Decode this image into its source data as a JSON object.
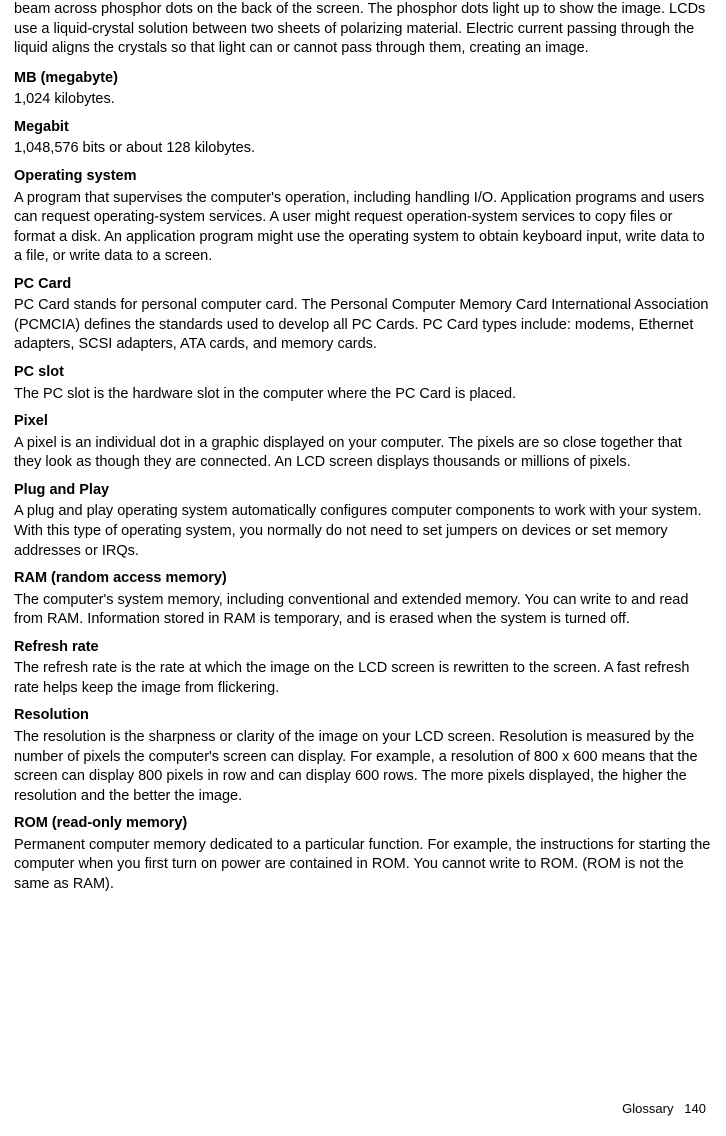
{
  "intro": "beam across phosphor dots on the back of the screen. The phosphor dots light up to show the image. LCDs use a liquid-crystal solution between two sheets of polarizing material. Electric current passing through the liquid aligns the crystals so that light can or cannot pass through them, creating an image.",
  "entries": [
    {
      "term": "MB (megabyte)",
      "def": "1,024 kilobytes."
    },
    {
      "term": "Megabit",
      "def": "1,048,576 bits or about 128 kilobytes."
    },
    {
      "term": "Operating system",
      "def": "A program that supervises the computer's operation, including handling I/O. Application programs and users can request operating-system services. A user might request operation-system services to copy files or format a disk. An application program might use the operating system to obtain keyboard input, write data to a file, or write data to a screen."
    },
    {
      "term": "PC Card",
      "def": "PC Card stands for personal computer card. The Personal Computer Memory Card International Association (PCMCIA) defines the standards used to develop all PC Cards. PC Card types include: modems, Ethernet adapters, SCSI adapters, ATA cards, and memory cards."
    },
    {
      "term": "PC slot",
      "def": "The PC slot is the hardware slot in the computer where the PC Card is placed."
    },
    {
      "term": "Pixel",
      "def": "A pixel is an individual dot in a graphic displayed on your computer. The pixels are so close together that they look as though they are connected. An LCD screen displays thousands or millions of pixels."
    },
    {
      "term": "Plug and Play",
      "def": "A plug and play operating system automatically configures computer components to work with your system. With this type of operating system, you normally do not need to set jumpers on devices or set memory addresses or IRQs."
    },
    {
      "term": "RAM (random access memory)",
      "def": "The computer's system memory, including conventional and extended memory. You can write to and read from RAM. Information stored in RAM is temporary, and is erased when the system is turned off."
    },
    {
      "term": "Refresh rate",
      "def": "The refresh rate is the rate at which the image on the LCD screen is rewritten to the screen. A fast refresh rate helps keep the image from flickering."
    },
    {
      "term": "Resolution",
      "def": "The resolution is the sharpness or clarity of the image on your LCD screen. Resolution is measured by the number of pixels the computer's screen can display. For example, a resolution of 800 x 600 means that the screen can display 800 pixels in row and can display 600 rows. The more pixels displayed, the higher the resolution and the better the image."
    },
    {
      "term": "ROM (read-only memory)",
      "def": "Permanent computer memory dedicated to a particular function. For example, the instructions for starting the computer when you first turn on power are contained in ROM. You cannot write to ROM. (ROM is not the same as RAM)."
    }
  ],
  "footer": {
    "section": "Glossary",
    "page": "140"
  }
}
